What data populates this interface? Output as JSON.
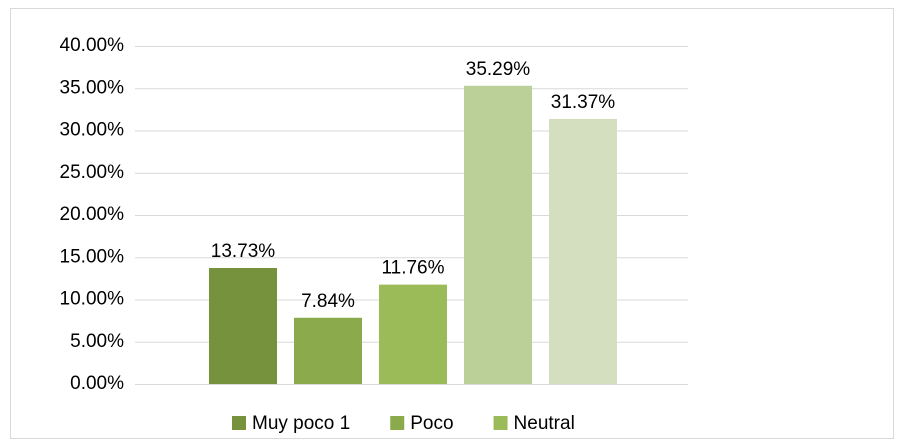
{
  "chart_data": {
    "type": "bar",
    "series": [
      {
        "name": "Muy poco 1",
        "color": "#77923c",
        "values": [
          13.73
        ],
        "value_labels": [
          "13.73%"
        ]
      },
      {
        "name": "Poco",
        "color": "#8aaa4b",
        "values": [
          7.84
        ],
        "value_labels": [
          "7.84%"
        ]
      },
      {
        "name": "Neutral",
        "color": "#9bbb59",
        "values": [
          11.76
        ],
        "value_labels": [
          "11.76%"
        ]
      },
      {
        "color": "#bbcf98",
        "values": [
          35.29
        ],
        "value_labels": [
          "35.29%"
        ]
      },
      {
        "color": "#d3dfbf",
        "values": [
          31.37
        ],
        "value_labels": [
          "31.37%"
        ]
      }
    ],
    "ylim": [
      0,
      40
    ],
    "yticks": [
      {
        "value": 0,
        "label": "0.00%"
      },
      {
        "value": 5,
        "label": "5.00%"
      },
      {
        "value": 10,
        "label": "10.00%"
      },
      {
        "value": 15,
        "label": "15.00%"
      },
      {
        "value": 20,
        "label": "20.00%"
      },
      {
        "value": 25,
        "label": "25.00%"
      },
      {
        "value": 30,
        "label": "30.00%"
      },
      {
        "value": 35,
        "label": "35.00%"
      },
      {
        "value": 40,
        "label": "40.00%"
      }
    ],
    "grid": true,
    "legend": "bottom"
  }
}
